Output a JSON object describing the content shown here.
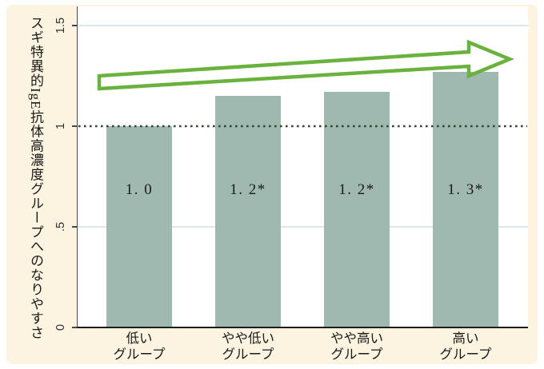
{
  "chart_data": {
    "type": "bar",
    "title": "",
    "ylabel": "スギ特異的IgE抗体高濃度グループへのなりやすさ",
    "xlabel": "",
    "categories": [
      [
        "低い",
        "グループ"
      ],
      [
        "やや低い",
        "グループ"
      ],
      [
        "やや高い",
        "グループ"
      ],
      [
        "高い",
        "グループ"
      ]
    ],
    "values": [
      1.0,
      1.15,
      1.17,
      1.27
    ],
    "bar_labels": [
      "1. 0",
      "1. 2*",
      "1. 2*",
      "1. 3*"
    ],
    "ylim": [
      0,
      1.5
    ],
    "yticks": [
      {
        "value": 0,
        "label": "0",
        "gridline": false
      },
      {
        "value": 0.5,
        "label": ".5",
        "gridline": true
      },
      {
        "value": 1,
        "label": "1",
        "gridline": false
      },
      {
        "value": 1.5,
        "label": "1.5",
        "gridline": true
      }
    ],
    "reference_line_y": 1,
    "legend": null,
    "grid": "horizontal, light",
    "annotation": "hollow green arrow rising from left to right above the bars"
  },
  "colors": {
    "background": "#fcf3e1",
    "plot_background": "#ffffff",
    "bar": "#9fb8b0",
    "arrow": "#6ab23e",
    "reference_line": "#2c4733",
    "gridline": "#dce7ee",
    "axis": "#474747",
    "text": "#1a1a1a"
  }
}
